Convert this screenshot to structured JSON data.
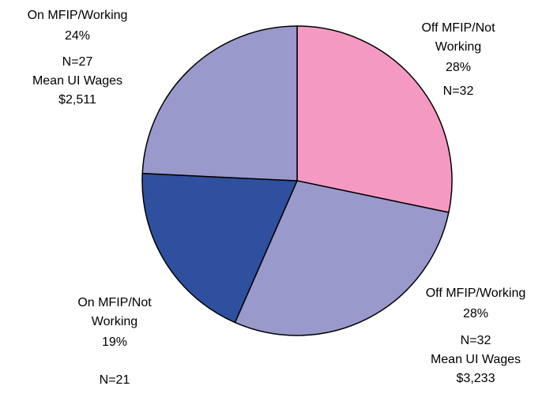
{
  "chart_data": {
    "type": "pie",
    "categories": [
      "Off MFIP/Not Working",
      "Off MFIP/Working",
      "On MFIP/Not Working",
      "On MFIP/Working"
    ],
    "values": [
      28,
      28,
      19,
      24
    ],
    "value_labels": [
      "28%",
      "28%",
      "19%",
      "24%"
    ],
    "colors": [
      "#f49ac2",
      "#9999cc",
      "#2f4f9f",
      "#9999cc"
    ],
    "counts": [
      32,
      32,
      21,
      27
    ],
    "count_labels": [
      "N=32",
      "N=32",
      "N=21",
      "N=27"
    ],
    "wage_labels": [
      null,
      [
        "Mean UI Wages",
        "$3,233"
      ],
      null,
      [
        "Mean UI Wages",
        "$2,511"
      ]
    ]
  }
}
